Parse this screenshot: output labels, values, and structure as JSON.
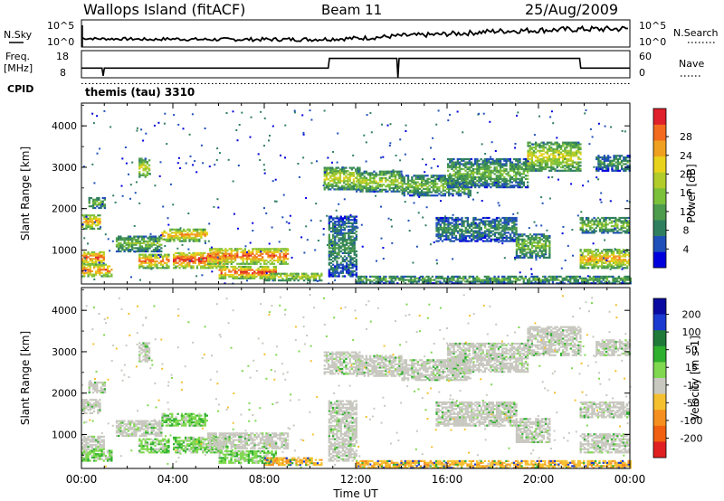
{
  "header": {
    "station": "Wallops Island (fitACF)",
    "beam": "Beam 11",
    "date": "25/Aug/2009"
  },
  "strip_labels": {
    "nsky": "N.Sky",
    "nsky_scale": [
      "10^5",
      "10^0"
    ],
    "nsearch": "N.Search",
    "freq": "Freq.",
    "freq_unit": "[MHz]",
    "freq_ticks": [
      "18",
      "8"
    ],
    "nave": "Nave",
    "nave_ticks": [
      "60",
      "0"
    ],
    "cpid": "CPID",
    "cpid_value": "themis (tau) 3310"
  },
  "chart_data": [
    {
      "type": "line",
      "name": "noise-strip",
      "x": [
        0,
        1,
        2,
        3,
        4,
        5,
        6,
        7,
        8,
        9,
        10,
        11,
        12,
        13,
        14,
        15,
        16,
        17,
        18,
        19,
        20,
        21,
        22,
        23,
        24
      ],
      "series": [
        {
          "values": [
            1.6,
            1.5,
            1.5,
            1.4,
            1.5,
            1.4,
            1.4,
            1.4,
            1.4,
            1.4,
            1.4,
            1.5,
            1.6,
            1.8,
            2.1,
            2.2,
            2.4,
            2.6,
            2.9,
            3.0,
            3.1,
            3.2,
            3.3,
            3.3,
            3.4
          ]
        }
      ],
      "ylim": [
        0,
        5
      ]
    },
    {
      "type": "line",
      "name": "frequency-strip",
      "x": [
        0,
        0.9,
        0.95,
        1.0,
        10.8,
        10.85,
        13.8,
        13.85,
        13.9,
        21.8,
        21.85,
        24
      ],
      "series": [
        {
          "values": [
            11,
            11,
            7,
            11,
            11,
            16,
            16,
            6,
            16,
            16,
            11,
            11
          ]
        }
      ],
      "nave_level": 3,
      "ylim": [
        6,
        20
      ]
    },
    {
      "type": "heatmap",
      "name": "power-panel",
      "ylabel": "Slant Range [km]",
      "yticks": [
        "1000",
        "2000",
        "3000",
        "4000"
      ],
      "ylim": [
        180,
        4550
      ],
      "colorbar": {
        "label": "Power [dB]",
        "ticks": [
          "4",
          "8",
          "12",
          "16",
          "20",
          "24",
          "28"
        ],
        "colors": [
          "#0000dd",
          "#1f4fb8",
          "#2f7f5f",
          "#4d9b4d",
          "#7cc13a",
          "#b2cc2a",
          "#e9d21c",
          "#f0a020",
          "#f26b1e",
          "#e0202a"
        ]
      }
    },
    {
      "type": "heatmap",
      "name": "velocity-panel",
      "ylabel": "Slant Range [km]",
      "yticks": [
        "1000",
        "2000",
        "3000",
        "4000"
      ],
      "ylim": [
        180,
        4550
      ],
      "xlabel": "Time UT",
      "xticks": [
        "00:00",
        "04:00",
        "08:00",
        "12:00",
        "16:00",
        "20:00",
        "00:00"
      ],
      "xlim": [
        0,
        24
      ],
      "colorbar": {
        "label": "Velocity [m s-1]",
        "ticks": [
          "200",
          "100",
          "50",
          "15",
          "-15",
          "-50",
          "-100",
          "-200"
        ],
        "colors": [
          "#0a0aa0",
          "#1a3ad0",
          "#1f7a3a",
          "#2fb02f",
          "#7fd84f",
          "#c8c8c0",
          "#f5c030",
          "#f59020",
          "#f06010",
          "#e02020"
        ]
      }
    }
  ],
  "echo_regions": [
    {
      "t": [
        0.0,
        1.0
      ],
      "r": [
        650,
        950
      ],
      "p": 26,
      "v": "gray"
    },
    {
      "t": [
        0.0,
        1.3
      ],
      "r": [
        350,
        650
      ],
      "p": 25,
      "v": "green"
    },
    {
      "t": [
        0.0,
        0.8
      ],
      "r": [
        1500,
        1850
      ],
      "p": 22,
      "v": "gray"
    },
    {
      "t": [
        0.3,
        1.0
      ],
      "r": [
        2000,
        2250
      ],
      "p": 14,
      "v": "gray"
    },
    {
      "t": [
        2.5,
        3.0
      ],
      "r": [
        2750,
        3200
      ],
      "p": 18,
      "v": "gray"
    },
    {
      "t": [
        1.5,
        3.5
      ],
      "r": [
        950,
        1350
      ],
      "p": 14,
      "v": "gray"
    },
    {
      "t": [
        2.5,
        3.8
      ],
      "r": [
        550,
        900
      ],
      "p": 24,
      "v": "green"
    },
    {
      "t": [
        3.5,
        5.5
      ],
      "r": [
        1200,
        1500
      ],
      "p": 22,
      "v": "green"
    },
    {
      "t": [
        4.0,
        6.3
      ],
      "r": [
        550,
        950
      ],
      "p": 27,
      "v": "green"
    },
    {
      "t": [
        5.5,
        9.0
      ],
      "r": [
        650,
        1050
      ],
      "p": 25,
      "v": "gray"
    },
    {
      "t": [
        6.0,
        8.5
      ],
      "r": [
        300,
        600
      ],
      "p": 26,
      "v": "green"
    },
    {
      "t": [
        8.0,
        10.5
      ],
      "r": [
        250,
        450
      ],
      "p": 18,
      "v": "orange"
    },
    {
      "t": [
        10.8,
        12.0
      ],
      "r": [
        350,
        1800
      ],
      "p": 10,
      "v": "gray"
    },
    {
      "t": [
        10.6,
        12.2
      ],
      "r": [
        2450,
        3000
      ],
      "p": 18,
      "v": "gray"
    },
    {
      "t": [
        12.0,
        14.0
      ],
      "r": [
        2400,
        2900
      ],
      "p": 16,
      "v": "gray"
    },
    {
      "t": [
        14.0,
        17.0
      ],
      "r": [
        2300,
        2800
      ],
      "p": 14,
      "v": "gray"
    },
    {
      "t": [
        16.0,
        19.5
      ],
      "r": [
        2500,
        3200
      ],
      "p": 13,
      "v": "gray"
    },
    {
      "t": [
        19.5,
        21.8
      ],
      "r": [
        2900,
        3600
      ],
      "p": 18,
      "v": "gray"
    },
    {
      "t": [
        15.5,
        19.0
      ],
      "r": [
        1200,
        1800
      ],
      "p": 10,
      "v": "gray"
    },
    {
      "t": [
        19.0,
        20.5
      ],
      "r": [
        800,
        1400
      ],
      "p": 14,
      "v": "gray"
    },
    {
      "t": [
        21.8,
        24.0
      ],
      "r": [
        550,
        1000
      ],
      "p": 22,
      "v": "gray"
    },
    {
      "t": [
        21.8,
        24.0
      ],
      "r": [
        1400,
        1800
      ],
      "p": 14,
      "v": "gray"
    },
    {
      "t": [
        22.5,
        24.0
      ],
      "r": [
        2900,
        3300
      ],
      "p": 10,
      "v": "gray"
    },
    {
      "t": [
        12.0,
        24.0
      ],
      "r": [
        180,
        380
      ],
      "p": 12,
      "v": "orange"
    }
  ]
}
